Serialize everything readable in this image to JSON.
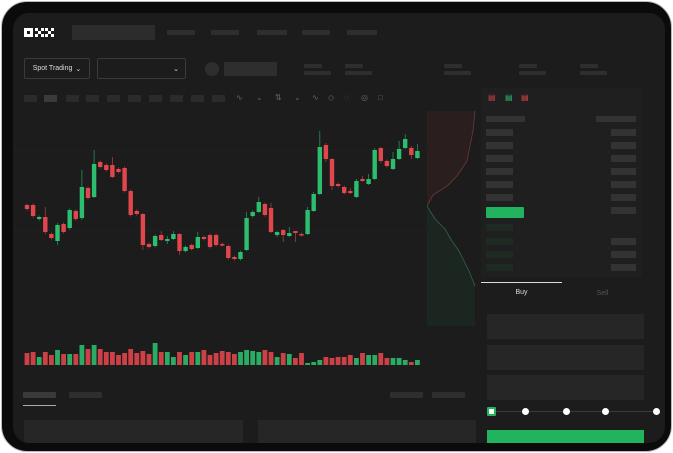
{
  "header": {
    "logo": "OKX",
    "nav_count": 5
  },
  "market_bar": {
    "mode_dropdown": "Spot Trading",
    "pair_dropdown": ""
  },
  "trade_panel": {
    "tabs": [
      "Buy",
      "Sell"
    ],
    "active_tab": "Buy",
    "slider_steps": [
      0,
      25,
      50,
      75,
      100
    ],
    "slider_value": 0
  },
  "colors": {
    "up": "#2dbd6e",
    "down": "#e0464b",
    "buy_button": "#22b35e",
    "background": "#1c1c1c"
  },
  "toolbar_icons": [
    "indicator-icon",
    "chart-type-icon",
    "line-tool-icon",
    "ruler-icon",
    "camera-icon",
    "settings-icon",
    "fullscreen-icon"
  ],
  "orderbook_icons": [
    "orderbook-both-icon",
    "orderbook-bids-icon",
    "orderbook-asks-icon"
  ],
  "chart_data": {
    "type": "candlestick",
    "candles": [
      [
        57,
        53
      ],
      [
        57,
        46
      ],
      [
        43,
        45
      ],
      [
        45,
        30,
        55,
        28
      ],
      [
        28,
        24
      ],
      [
        21,
        37,
        39,
        17
      ],
      [
        38,
        30
      ],
      [
        34,
        52
      ],
      [
        51,
        43
      ],
      [
        44,
        75,
        92,
        42
      ],
      [
        74,
        64
      ],
      [
        65,
        98,
        112,
        64
      ],
      [
        100,
        95
      ],
      [
        97,
        92
      ],
      [
        97,
        85,
        105,
        84
      ],
      [
        93,
        90
      ],
      [
        94,
        71
      ],
      [
        71,
        47
      ],
      [
        51,
        48
      ],
      [
        48,
        17,
        49,
        12
      ],
      [
        18,
        15
      ],
      [
        16,
        26
      ],
      [
        27,
        22,
        31,
        21
      ],
      [
        21,
        23,
        26,
        18
      ],
      [
        23,
        28,
        31,
        22
      ],
      [
        28,
        11,
        29,
        7
      ],
      [
        11,
        15
      ],
      [
        17,
        13
      ],
      [
        14,
        25,
        30,
        13
      ],
      [
        25,
        23
      ],
      [
        27,
        15
      ],
      [
        27,
        17
      ],
      [
        18,
        17
      ],
      [
        16,
        4
      ],
      [
        5,
        3
      ],
      [
        3,
        10
      ],
      [
        12,
        44,
        50,
        11
      ],
      [
        46,
        50
      ],
      [
        50,
        60,
        65,
        49
      ],
      [
        58,
        47
      ],
      [
        54,
        30,
        59,
        29
      ],
      [
        27,
        30,
        31,
        25
      ],
      [
        32,
        27,
        33,
        20
      ],
      [
        26,
        29,
        35,
        25
      ],
      [
        31,
        29,
        31,
        20
      ],
      [
        28,
        27
      ],
      [
        28,
        52,
        55,
        27
      ],
      [
        51,
        68,
        70,
        50
      ],
      [
        68,
        115,
        131,
        67
      ],
      [
        117,
        103,
        119,
        100
      ],
      [
        103,
        76,
        104,
        72
      ],
      [
        78,
        76
      ],
      [
        75,
        69
      ],
      [
        71,
        69,
        74,
        68
      ],
      [
        65,
        81,
        83,
        64
      ],
      [
        83,
        81,
        86,
        80
      ],
      [
        78,
        83,
        88,
        77
      ],
      [
        83,
        112,
        114,
        82
      ],
      [
        114,
        101,
        115,
        99
      ],
      [
        101,
        96
      ],
      [
        93,
        103,
        110,
        92
      ],
      [
        103,
        113,
        121,
        102
      ],
      [
        114,
        123,
        128,
        113
      ],
      [
        114,
        107,
        116,
        103
      ],
      [
        104,
        111,
        118,
        103
      ]
    ],
    "volume": [
      12,
      13,
      8,
      13,
      10,
      15,
      11,
      11,
      11,
      20,
      16,
      20,
      16,
      13,
      13,
      10,
      12,
      16,
      12,
      14,
      11,
      22,
      13,
      13,
      8,
      13,
      10,
      13,
      13,
      15,
      10,
      12,
      14,
      13,
      11,
      13,
      15,
      14,
      13,
      15,
      13,
      8,
      12,
      11,
      7,
      12,
      2,
      3,
      5,
      8,
      7,
      8,
      8,
      10,
      7,
      12,
      10,
      10,
      12,
      7,
      7,
      7,
      5,
      3,
      5
    ]
  }
}
